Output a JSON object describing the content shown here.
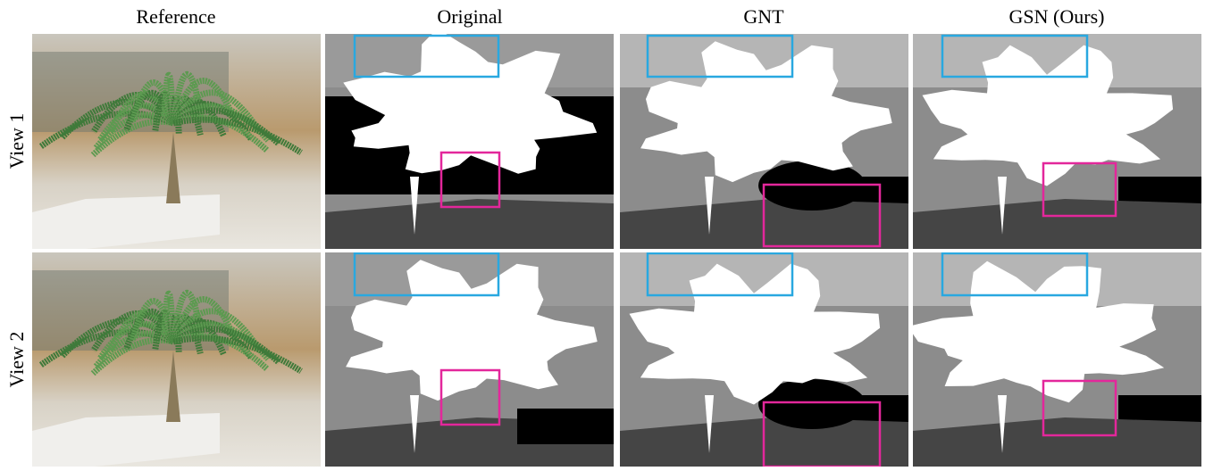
{
  "columns": [
    "Reference",
    "Original",
    "GNT",
    "GSN (Ours)"
  ],
  "rows": [
    "View 1",
    "View 2"
  ]
}
